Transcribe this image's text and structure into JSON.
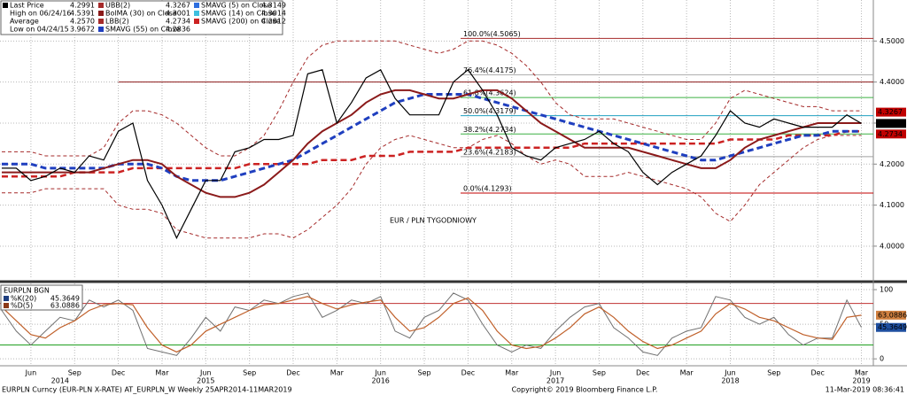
{
  "chart_data": [
    {
      "type": "line",
      "categories": [
        null,
        null,
        "Jun",
        null,
        null,
        "Sep",
        null,
        null,
        "Dec",
        null,
        null,
        "Mar",
        null,
        null,
        "Jun",
        null,
        null,
        "Sep",
        null,
        null,
        "Dec",
        null,
        null,
        "Mar",
        null,
        null,
        "Jun",
        null,
        null,
        "Sep",
        null,
        null,
        "Dec",
        null,
        null,
        "Mar",
        null,
        null,
        "Jun",
        null,
        null,
        "Sep",
        null,
        null,
        "Dec",
        null,
        null,
        "Mar",
        null,
        null,
        "Jun",
        null,
        null,
        "Sep",
        null,
        null,
        "Dec",
        null,
        null,
        "Mar"
      ],
      "years": [
        null,
        null,
        null,
        null,
        "2014",
        null,
        null,
        null,
        null,
        null,
        null,
        null,
        null,
        null,
        "2015",
        null,
        null,
        null,
        null,
        null,
        null,
        null,
        null,
        null,
        null,
        null,
        "2016",
        null,
        null,
        null,
        null,
        null,
        null,
        null,
        null,
        null,
        null,
        null,
        "2017",
        null,
        null,
        null,
        null,
        null,
        null,
        null,
        null,
        null,
        null,
        null,
        "2018",
        null,
        null,
        null,
        null,
        null,
        null,
        null,
        null,
        "2019"
      ],
      "annotation": "EUR / PLN TYGODNIOWY",
      "annotation_color": "#c00000",
      "legend": [
        {
          "label": "Last Price",
          "value": "4.2991",
          "color": "#000000",
          "tag_color": "#000000"
        },
        {
          "label": "High on 06/24/16",
          "value": "4.5391"
        },
        {
          "label": "Average",
          "value": "4.2570"
        },
        {
          "label": "Low on 04/24/15",
          "value": "3.9672"
        },
        {
          "label": "UBB(2)",
          "value": "4.3267",
          "color": "#a52a2a",
          "tag_color": "#c00000"
        },
        {
          "label": "BolMA (30) on Close",
          "value": "4.3001",
          "color": "#8b1a1a"
        },
        {
          "label": "LBB(2)",
          "value": "4.2734",
          "color": "#a52a2a",
          "tag_color": "#c00000"
        },
        {
          "label": "SMAVG (55) on Close",
          "value": "4.2836",
          "color": "#1f3fbf"
        },
        {
          "label": "SMAVG (5) on Close",
          "value": "4.3149",
          "color": "#2f6fdf"
        },
        {
          "label": "SMAVG (14) on Close",
          "value": "4.3014",
          "color": "#3fbfdf"
        },
        {
          "label": "SMAVG (200) on Close",
          "value": "4.2812",
          "color": "#cc2222"
        }
      ],
      "series": [
        {
          "color": "#a52a2a",
          "width": 1,
          "dash": "4 3",
          "values": [
            4.23,
            4.23,
            4.23,
            4.22,
            4.22,
            4.22,
            4.22,
            4.24,
            4.3,
            4.33,
            4.33,
            4.32,
            4.3,
            4.27,
            4.24,
            4.22,
            4.22,
            4.24,
            4.27,
            4.33,
            4.4,
            4.46,
            4.49,
            4.5,
            4.5,
            4.5,
            4.5,
            4.5,
            4.49,
            4.48,
            4.47,
            4.48,
            4.5,
            4.5,
            4.49,
            4.47,
            4.44,
            4.4,
            4.35,
            4.32,
            4.31,
            4.31,
            4.31,
            4.3,
            4.29,
            4.28,
            4.27,
            4.26,
            4.26,
            4.3,
            4.36,
            4.38,
            4.37,
            4.36,
            4.35,
            4.34,
            4.34,
            4.33,
            4.33,
            4.33
          ]
        },
        {
          "color": "#a52a2a",
          "width": 1,
          "dash": "4 3",
          "values": [
            4.13,
            4.13,
            4.13,
            4.14,
            4.14,
            4.14,
            4.14,
            4.14,
            4.1,
            4.09,
            4.09,
            4.08,
            4.04,
            4.03,
            4.02,
            4.02,
            4.02,
            4.02,
            4.03,
            4.03,
            4.02,
            4.04,
            4.07,
            4.1,
            4.14,
            4.2,
            4.24,
            4.26,
            4.27,
            4.26,
            4.25,
            4.24,
            4.24,
            4.26,
            4.27,
            4.25,
            4.22,
            4.2,
            4.21,
            4.2,
            4.17,
            4.17,
            4.17,
            4.18,
            4.17,
            4.16,
            4.15,
            4.14,
            4.12,
            4.08,
            4.06,
            4.1,
            4.15,
            4.18,
            4.21,
            4.24,
            4.26,
            4.27,
            4.27,
            4.27
          ]
        },
        {
          "color": "#cc2222",
          "width": 2.5,
          "dash": "7 4",
          "values": [
            4.17,
            4.17,
            4.17,
            4.17,
            4.17,
            4.18,
            4.18,
            4.18,
            4.18,
            4.19,
            4.19,
            4.19,
            4.19,
            4.19,
            4.19,
            4.19,
            4.19,
            4.2,
            4.2,
            4.2,
            4.2,
            4.2,
            4.21,
            4.21,
            4.21,
            4.22,
            4.22,
            4.22,
            4.23,
            4.23,
            4.23,
            4.23,
            4.24,
            4.24,
            4.24,
            4.24,
            4.24,
            4.24,
            4.24,
            4.24,
            4.25,
            4.25,
            4.25,
            4.25,
            4.25,
            4.25,
            4.25,
            4.25,
            4.25,
            4.25,
            4.26,
            4.26,
            4.26,
            4.26,
            4.27,
            4.27,
            4.27,
            4.27,
            4.28,
            4.28
          ]
        },
        {
          "color": "#1f3fbf",
          "width": 3,
          "dash": "7 4",
          "values": [
            4.2,
            4.2,
            4.2,
            4.19,
            4.19,
            4.19,
            4.19,
            4.19,
            4.2,
            4.2,
            4.2,
            4.19,
            4.17,
            4.16,
            4.16,
            4.16,
            4.17,
            4.18,
            4.19,
            4.2,
            4.21,
            4.23,
            4.25,
            4.27,
            4.29,
            4.31,
            4.33,
            4.35,
            4.36,
            4.37,
            4.37,
            4.37,
            4.37,
            4.36,
            4.35,
            4.34,
            4.33,
            4.32,
            4.31,
            4.3,
            4.29,
            4.28,
            4.27,
            4.26,
            4.25,
            4.24,
            4.23,
            4.22,
            4.21,
            4.21,
            4.22,
            4.23,
            4.24,
            4.25,
            4.26,
            4.27,
            4.27,
            4.28,
            4.28,
            4.28
          ]
        },
        {
          "color": "#8b1a1a",
          "width": 2,
          "dash": null,
          "values": [
            4.18,
            4.18,
            4.18,
            4.18,
            4.18,
            4.18,
            4.18,
            4.19,
            4.2,
            4.21,
            4.21,
            4.2,
            4.17,
            4.15,
            4.13,
            4.12,
            4.12,
            4.13,
            4.15,
            4.18,
            4.21,
            4.25,
            4.28,
            4.3,
            4.32,
            4.35,
            4.37,
            4.38,
            4.38,
            4.37,
            4.36,
            4.36,
            4.37,
            4.38,
            4.38,
            4.36,
            4.33,
            4.3,
            4.28,
            4.26,
            4.24,
            4.24,
            4.24,
            4.24,
            4.23,
            4.22,
            4.21,
            4.2,
            4.19,
            4.19,
            4.21,
            4.24,
            4.26,
            4.27,
            4.28,
            4.29,
            4.3,
            4.3,
            4.3,
            4.3
          ]
        },
        {
          "color": "#000000",
          "width": 1.2,
          "dash": null,
          "values": [
            4.19,
            4.19,
            4.16,
            4.17,
            4.19,
            4.18,
            4.22,
            4.21,
            4.28,
            4.3,
            4.16,
            4.1,
            4.02,
            4.09,
            4.16,
            4.16,
            4.23,
            4.24,
            4.26,
            4.26,
            4.27,
            4.42,
            4.43,
            4.3,
            4.35,
            4.41,
            4.43,
            4.36,
            4.32,
            4.32,
            4.32,
            4.4,
            4.43,
            4.38,
            4.32,
            4.24,
            4.22,
            4.21,
            4.24,
            4.25,
            4.26,
            4.28,
            4.25,
            4.23,
            4.18,
            4.15,
            4.18,
            4.2,
            4.22,
            4.27,
            4.33,
            4.3,
            4.29,
            4.31,
            4.3,
            4.29,
            4.29,
            4.29,
            4.32,
            4.2991
          ]
        }
      ],
      "horizontal_lines": [
        {
          "value": 4.4,
          "color": "#8b1a1a"
        }
      ],
      "fib_levels": [
        {
          "value": 4.5065,
          "label": "100.0%(4.5065)",
          "color": "#a52a2a"
        },
        {
          "value": 4.4175,
          "label": "76.4%(4.4175)",
          "color": "#b0b0b0"
        },
        {
          "value": 4.3624,
          "label": "61.8%(4.3624)",
          "color": "#3cb043"
        },
        {
          "value": 4.3179,
          "label": "50.0%(4.3179)",
          "color": "#20a0c0"
        },
        {
          "value": 4.2734,
          "label": "38.2%(4.2734)",
          "color": "#3cb043"
        },
        {
          "value": 4.2183,
          "label": "23.6%(4.2183)",
          "color": "#a0a0a0"
        },
        {
          "value": 4.1293,
          "label": "0.0%(4.1293)",
          "color": "#c00000"
        }
      ],
      "ylim": [
        3.92,
        4.6
      ],
      "yticks": [
        {
          "value": 4.0,
          "label": "4.0000"
        },
        {
          "value": 4.1,
          "label": "4.1000"
        },
        {
          "value": 4.2,
          "label": "4.2000"
        },
        {
          "value": 4.3,
          "label": "4.3000"
        },
        {
          "value": 4.4,
          "label": "4.4000"
        },
        {
          "value": 4.5,
          "label": "4.5000"
        }
      ],
      "grid": true
    },
    {
      "type": "line",
      "legend_title": "EURPLN BGN",
      "legend": [
        {
          "label": "%K(20)",
          "value": "45.3649",
          "color": "#1f3f7f",
          "tag_color": "#1f4f9f"
        },
        {
          "label": "%D(5)",
          "value": "63.0886",
          "color": "#8b3a1a",
          "tag_color": "#d08040"
        }
      ],
      "series": [
        {
          "color": "#707070",
          "width": 1,
          "dash": null,
          "values": [
            70,
            40,
            20,
            40,
            60,
            55,
            85,
            75,
            85,
            70,
            15,
            10,
            5,
            30,
            60,
            40,
            75,
            70,
            85,
            80,
            90,
            95,
            60,
            70,
            85,
            80,
            90,
            40,
            30,
            60,
            70,
            95,
            85,
            50,
            20,
            10,
            20,
            15,
            40,
            60,
            75,
            80,
            45,
            30,
            10,
            5,
            30,
            40,
            45,
            90,
            85,
            60,
            50,
            60,
            35,
            20,
            30,
            30,
            85,
            45.3649
          ]
        },
        {
          "color": "#c0602a",
          "width": 1.2,
          "dash": null,
          "values": [
            75,
            55,
            35,
            30,
            45,
            55,
            70,
            78,
            80,
            78,
            45,
            20,
            10,
            20,
            40,
            50,
            60,
            70,
            78,
            80,
            85,
            90,
            80,
            72,
            78,
            82,
            85,
            60,
            40,
            45,
            60,
            80,
            88,
            70,
            40,
            20,
            15,
            18,
            30,
            45,
            65,
            75,
            60,
            40,
            25,
            15,
            20,
            30,
            40,
            65,
            80,
            72,
            60,
            55,
            45,
            35,
            30,
            28,
            60,
            63.0886
          ]
        }
      ],
      "horizontal_lines": [
        {
          "value": 80,
          "color": "#c03030"
        },
        {
          "value": 20,
          "color": "#20a020"
        }
      ],
      "ylim": [
        -10,
        109
      ],
      "yticks": [
        0,
        50,
        100
      ],
      "grid": true
    }
  ],
  "footer": {
    "left": "EURPLN Curncy (EUR-PLN X-RATE) AT_EURPLN_W Weekly 25APR2014-11MAR2019",
    "center": "Copyright© 2019 Bloomberg Finance L.P.",
    "right": "11-Mar-2019 08:36:41"
  }
}
